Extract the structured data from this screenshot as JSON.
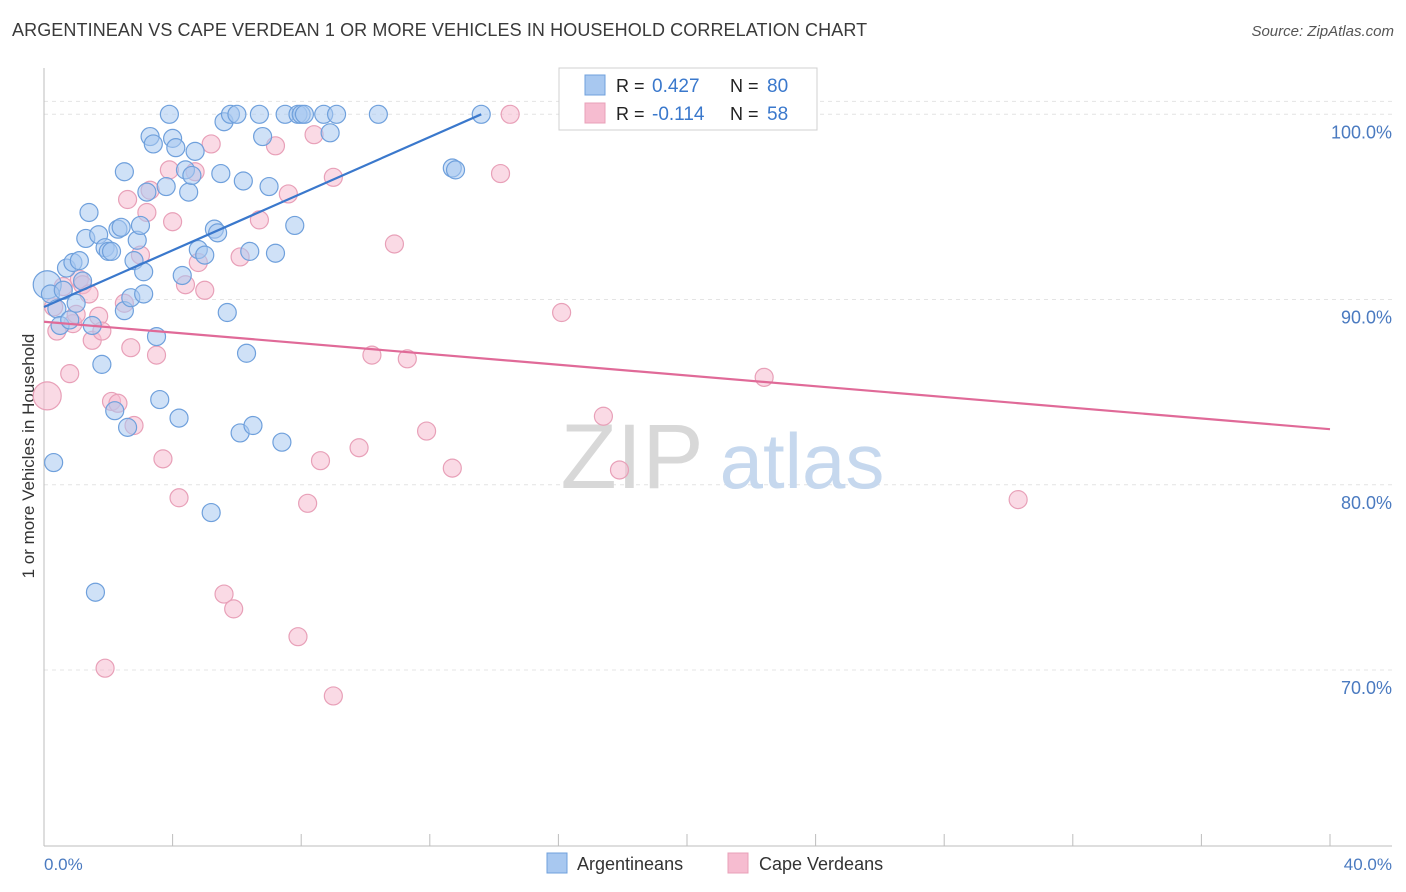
{
  "chart_data": {
    "type": "scatter",
    "title": "ARGENTINEAN VS CAPE VERDEAN 1 OR MORE VEHICLES IN HOUSEHOLD CORRELATION CHART",
    "source": "Source: ZipAtlas.com",
    "xlabel": "",
    "ylabel": "1 or more Vehicles in Household",
    "xlim": [
      0,
      40
    ],
    "ylim": [
      60.5,
      102.5
    ],
    "x_tick_labels": [
      "0.0%",
      "40.0%"
    ],
    "y_ticks": [
      70,
      80,
      90,
      100
    ],
    "y_tick_labels": [
      "70.0%",
      "80.0%",
      "90.0%",
      "100.0%"
    ],
    "grid": true,
    "legend_position": "top-center",
    "watermark": {
      "zip": "ZIP",
      "atlas": "atlas"
    },
    "colors": {
      "argentineans_fill": "#a8c8f0",
      "argentineans_stroke": "#6fa0dc",
      "argentineans_line": "#3a78cc",
      "cape_verdeans_fill": "#f6bcd0",
      "cape_verdeans_stroke": "#e8a0b8",
      "cape_verdeans_line": "#e06a98",
      "tick_label": "#4a7ac0"
    },
    "stats": [
      {
        "r_label": "R =",
        "r_value": "0.427",
        "n_label": "N =",
        "n_value": "80"
      },
      {
        "r_label": "R =",
        "r_value": "-0.114",
        "n_label": "N =",
        "n_value": "58"
      }
    ],
    "series": [
      {
        "name": "Argentineans",
        "trend": {
          "x": [
            0.0,
            13.6
          ],
          "y": [
            89.6,
            100.0
          ]
        },
        "points": [
          [
            0.1,
            90.8
          ],
          [
            0.2,
            90.3
          ],
          [
            0.3,
            81.2
          ],
          [
            0.4,
            89.5
          ],
          [
            0.5,
            88.6
          ],
          [
            0.6,
            90.5
          ],
          [
            0.7,
            91.7
          ],
          [
            0.8,
            88.9
          ],
          [
            0.9,
            92.0
          ],
          [
            1.0,
            89.8
          ],
          [
            1.1,
            92.1
          ],
          [
            1.2,
            91.0
          ],
          [
            1.3,
            93.3
          ],
          [
            1.4,
            94.7
          ],
          [
            1.5,
            88.6
          ],
          [
            1.6,
            74.2
          ],
          [
            1.7,
            93.5
          ],
          [
            1.8,
            86.5
          ],
          [
            1.9,
            92.8
          ],
          [
            2.0,
            92.6
          ],
          [
            2.1,
            92.6
          ],
          [
            2.2,
            84.0
          ],
          [
            2.3,
            93.8
          ],
          [
            2.4,
            93.9
          ],
          [
            2.5,
            89.4
          ],
          [
            2.5,
            96.9
          ],
          [
            2.6,
            83.1
          ],
          [
            2.7,
            90.1
          ],
          [
            2.8,
            92.1
          ],
          [
            2.9,
            93.2
          ],
          [
            3.0,
            94.0
          ],
          [
            3.1,
            90.3
          ],
          [
            3.1,
            91.5
          ],
          [
            3.2,
            95.8
          ],
          [
            3.3,
            98.8
          ],
          [
            3.4,
            98.4
          ],
          [
            3.5,
            88.0
          ],
          [
            3.6,
            84.6
          ],
          [
            3.8,
            96.1
          ],
          [
            3.9,
            100.0
          ],
          [
            4.0,
            98.7
          ],
          [
            4.1,
            98.2
          ],
          [
            4.2,
            83.6
          ],
          [
            4.3,
            91.3
          ],
          [
            4.4,
            97.0
          ],
          [
            4.5,
            95.8
          ],
          [
            4.6,
            96.7
          ],
          [
            4.7,
            98.0
          ],
          [
            4.8,
            92.7
          ],
          [
            5.0,
            92.4
          ],
          [
            5.2,
            78.5
          ],
          [
            5.3,
            93.8
          ],
          [
            5.4,
            93.6
          ],
          [
            5.5,
            96.8
          ],
          [
            5.6,
            99.6
          ],
          [
            5.7,
            89.3
          ],
          [
            5.8,
            100.0
          ],
          [
            6.0,
            100.0
          ],
          [
            6.1,
            82.8
          ],
          [
            6.2,
            96.4
          ],
          [
            6.3,
            87.1
          ],
          [
            6.4,
            92.6
          ],
          [
            6.5,
            83.2
          ],
          [
            6.7,
            100.0
          ],
          [
            6.8,
            98.8
          ],
          [
            7.0,
            96.1
          ],
          [
            7.2,
            92.5
          ],
          [
            7.4,
            82.3
          ],
          [
            7.5,
            100.0
          ],
          [
            7.8,
            94.0
          ],
          [
            7.9,
            100.0
          ],
          [
            8.0,
            100.0
          ],
          [
            8.1,
            100.0
          ],
          [
            8.7,
            100.0
          ],
          [
            8.9,
            99.0
          ],
          [
            9.1,
            100.0
          ],
          [
            10.4,
            100.0
          ],
          [
            12.7,
            97.1
          ],
          [
            12.8,
            97.0
          ],
          [
            13.6,
            100.0
          ]
        ]
      },
      {
        "name": "Cape Verdeans",
        "trend": {
          "x": [
            0.0,
            40.0
          ],
          "y": [
            88.8,
            83.0
          ]
        },
        "points": [
          [
            0.1,
            84.8
          ],
          [
            0.3,
            89.6
          ],
          [
            0.4,
            88.3
          ],
          [
            0.6,
            90.7
          ],
          [
            0.8,
            86.0
          ],
          [
            0.9,
            88.7
          ],
          [
            1.0,
            89.2
          ],
          [
            1.1,
            91.1
          ],
          [
            1.2,
            90.8
          ],
          [
            1.4,
            90.3
          ],
          [
            1.5,
            87.8
          ],
          [
            1.7,
            89.1
          ],
          [
            1.8,
            88.3
          ],
          [
            1.9,
            70.1
          ],
          [
            2.1,
            84.5
          ],
          [
            2.3,
            84.4
          ],
          [
            2.5,
            89.8
          ],
          [
            2.6,
            95.4
          ],
          [
            2.7,
            87.4
          ],
          [
            2.8,
            83.2
          ],
          [
            3.0,
            92.4
          ],
          [
            3.2,
            94.7
          ],
          [
            3.3,
            95.9
          ],
          [
            3.5,
            87.0
          ],
          [
            3.7,
            81.4
          ],
          [
            3.9,
            97.0
          ],
          [
            4.0,
            94.2
          ],
          [
            4.2,
            79.3
          ],
          [
            4.4,
            90.8
          ],
          [
            4.7,
            96.9
          ],
          [
            4.8,
            92.0
          ],
          [
            5.0,
            90.5
          ],
          [
            5.2,
            98.4
          ],
          [
            5.6,
            74.1
          ],
          [
            5.9,
            73.3
          ],
          [
            6.1,
            92.3
          ],
          [
            6.7,
            94.3
          ],
          [
            7.2,
            98.3
          ],
          [
            7.6,
            95.7
          ],
          [
            7.9,
            71.8
          ],
          [
            8.2,
            79.0
          ],
          [
            8.4,
            98.9
          ],
          [
            8.6,
            81.3
          ],
          [
            9.0,
            96.6
          ],
          [
            9.0,
            68.6
          ],
          [
            9.8,
            82.0
          ],
          [
            10.2,
            87.0
          ],
          [
            10.9,
            93.0
          ],
          [
            11.3,
            86.8
          ],
          [
            11.9,
            82.9
          ],
          [
            12.7,
            80.9
          ],
          [
            14.2,
            96.8
          ],
          [
            14.5,
            100.0
          ],
          [
            16.1,
            89.3
          ],
          [
            17.4,
            83.7
          ],
          [
            17.9,
            80.8
          ],
          [
            22.4,
            85.8
          ],
          [
            30.3,
            79.2
          ]
        ]
      }
    ]
  }
}
